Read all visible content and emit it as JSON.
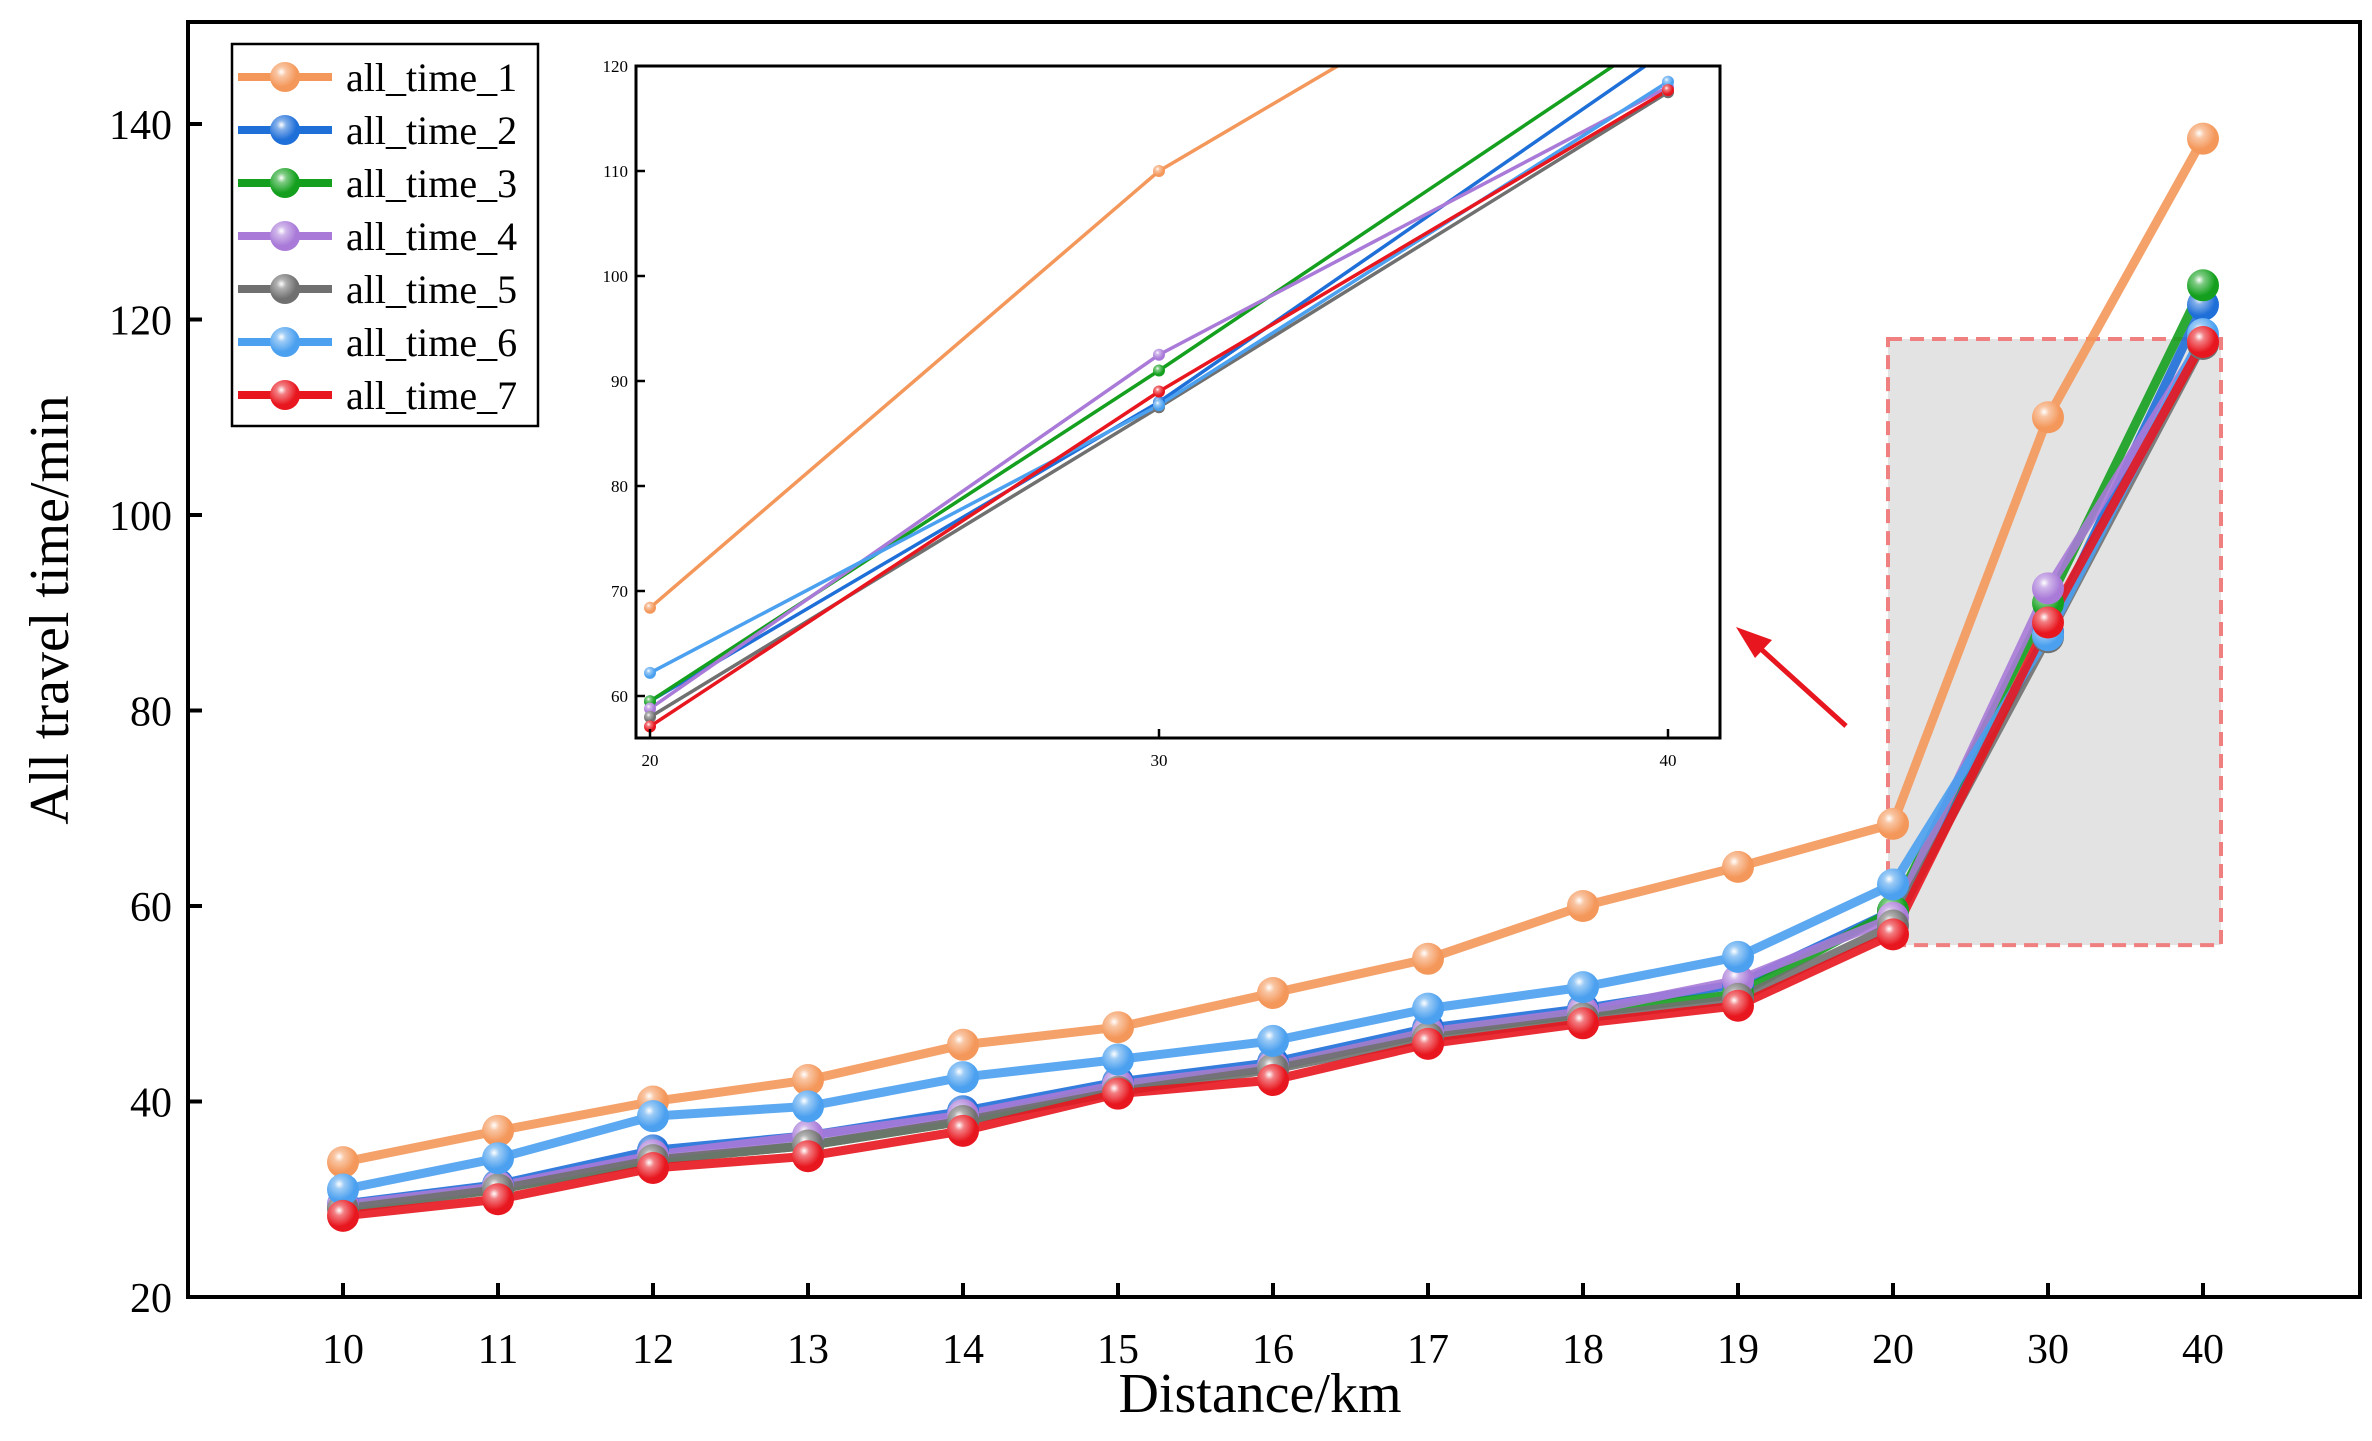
{
  "chart_data": {
    "type": "line",
    "xlabel": "Distance/km",
    "ylabel": "All travel time/min",
    "categories": [
      "10",
      "11",
      "12",
      "13",
      "14",
      "15",
      "16",
      "17",
      "18",
      "19",
      "20",
      "30",
      "40"
    ],
    "ylim": [
      20,
      150
    ],
    "yticks": [
      20,
      40,
      60,
      80,
      100,
      120,
      140
    ],
    "series": [
      {
        "name": "all_time_1",
        "color": "#f4975a",
        "values": [
          33.8,
          37.0,
          40.0,
          42.2,
          45.8,
          47.6,
          51.1,
          54.6,
          60.0,
          64.0,
          68.4,
          110.0,
          138.5
        ]
      },
      {
        "name": "all_time_2",
        "color": "#1f6fd8",
        "values": [
          29.5,
          31.5,
          35.0,
          36.5,
          39.0,
          42.0,
          44.0,
          47.5,
          49.5,
          52.0,
          59.5,
          88.0,
          121.5
        ]
      },
      {
        "name": "all_time_3",
        "color": "#14a01e",
        "values": [
          29.2,
          31.0,
          34.0,
          35.5,
          38.0,
          41.5,
          43.5,
          47.0,
          49.0,
          51.0,
          59.5,
          91.0,
          123.5
        ]
      },
      {
        "name": "all_time_4",
        "color": "#a97ad8",
        "values": [
          29.4,
          31.3,
          34.5,
          36.5,
          38.6,
          41.7,
          43.6,
          47.1,
          49.2,
          52.4,
          58.8,
          92.5,
          118.0
        ]
      },
      {
        "name": "all_time_5",
        "color": "#707070",
        "values": [
          29.0,
          31.0,
          34.0,
          35.5,
          38.0,
          41.0,
          43.3,
          46.5,
          48.5,
          50.5,
          58.0,
          87.5,
          117.5
        ]
      },
      {
        "name": "all_time_6",
        "color": "#4ba0ef",
        "values": [
          31.0,
          34.2,
          38.5,
          39.5,
          42.5,
          44.3,
          46.2,
          49.5,
          51.7,
          54.8,
          62.2,
          87.7,
          118.5
        ]
      },
      {
        "name": "all_time_7",
        "color": "#e8161e",
        "values": [
          28.3,
          30.0,
          33.2,
          34.4,
          37.0,
          40.8,
          42.2,
          45.9,
          48.0,
          49.8,
          57.1,
          89.0,
          117.7
        ]
      }
    ],
    "inset": {
      "categories": [
        "20",
        "30",
        "40"
      ],
      "ylim": [
        56,
        120
      ],
      "yticks": [
        60,
        70,
        80,
        90,
        100,
        110,
        120
      ]
    },
    "highlight_region": {
      "x_from": "20",
      "x_to": "40",
      "y_from": 56,
      "y_to": 118
    }
  }
}
